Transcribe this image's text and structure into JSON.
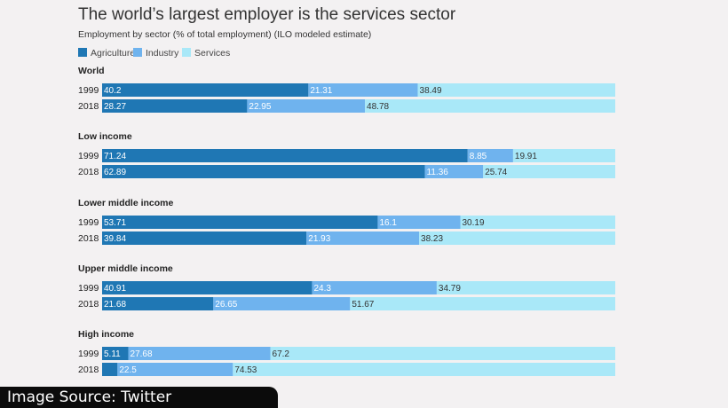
{
  "chart_data": {
    "type": "bar",
    "orientation": "horizontal",
    "stacked": true,
    "title": "The world’s largest employer is the services sector",
    "subtitle": "Employment by sector (% of total employment) (ILO modeled estimate)",
    "legend": [
      {
        "name": "Agriculture",
        "color": "#1f77b4"
      },
      {
        "name": "Industry",
        "color": "#6fb3ee"
      },
      {
        "name": "Services",
        "color": "#a9e8f8"
      }
    ],
    "groups": [
      {
        "name": "World",
        "rows": [
          {
            "year": "1999",
            "values": [
              40.2,
              21.31,
              38.49
            ]
          },
          {
            "year": "2018",
            "values": [
              28.27,
              22.95,
              48.78
            ]
          }
        ]
      },
      {
        "name": "Low income",
        "rows": [
          {
            "year": "1999",
            "values": [
              71.24,
              8.85,
              19.91
            ]
          },
          {
            "year": "2018",
            "values": [
              62.89,
              11.36,
              25.74
            ]
          }
        ]
      },
      {
        "name": "Lower middle income",
        "rows": [
          {
            "year": "1999",
            "values": [
              53.71,
              16.1,
              30.19
            ]
          },
          {
            "year": "2018",
            "values": [
              39.84,
              21.93,
              38.23
            ]
          }
        ]
      },
      {
        "name": "Upper middle income",
        "rows": [
          {
            "year": "1999",
            "values": [
              40.91,
              24.3,
              34.79
            ]
          },
          {
            "year": "2018",
            "values": [
              21.68,
              26.65,
              51.67
            ]
          }
        ]
      },
      {
        "name": "High income",
        "rows": [
          {
            "year": "1999",
            "values": [
              5.11,
              27.68,
              67.2
            ]
          },
          {
            "year": "2018",
            "values": [
              3.0,
              22.5,
              74.53
            ],
            "labels": [
              "",
              "22.5",
              "74.53"
            ]
          }
        ]
      }
    ],
    "xlim": [
      0,
      100
    ]
  },
  "credit": "Image Source: Twitter"
}
